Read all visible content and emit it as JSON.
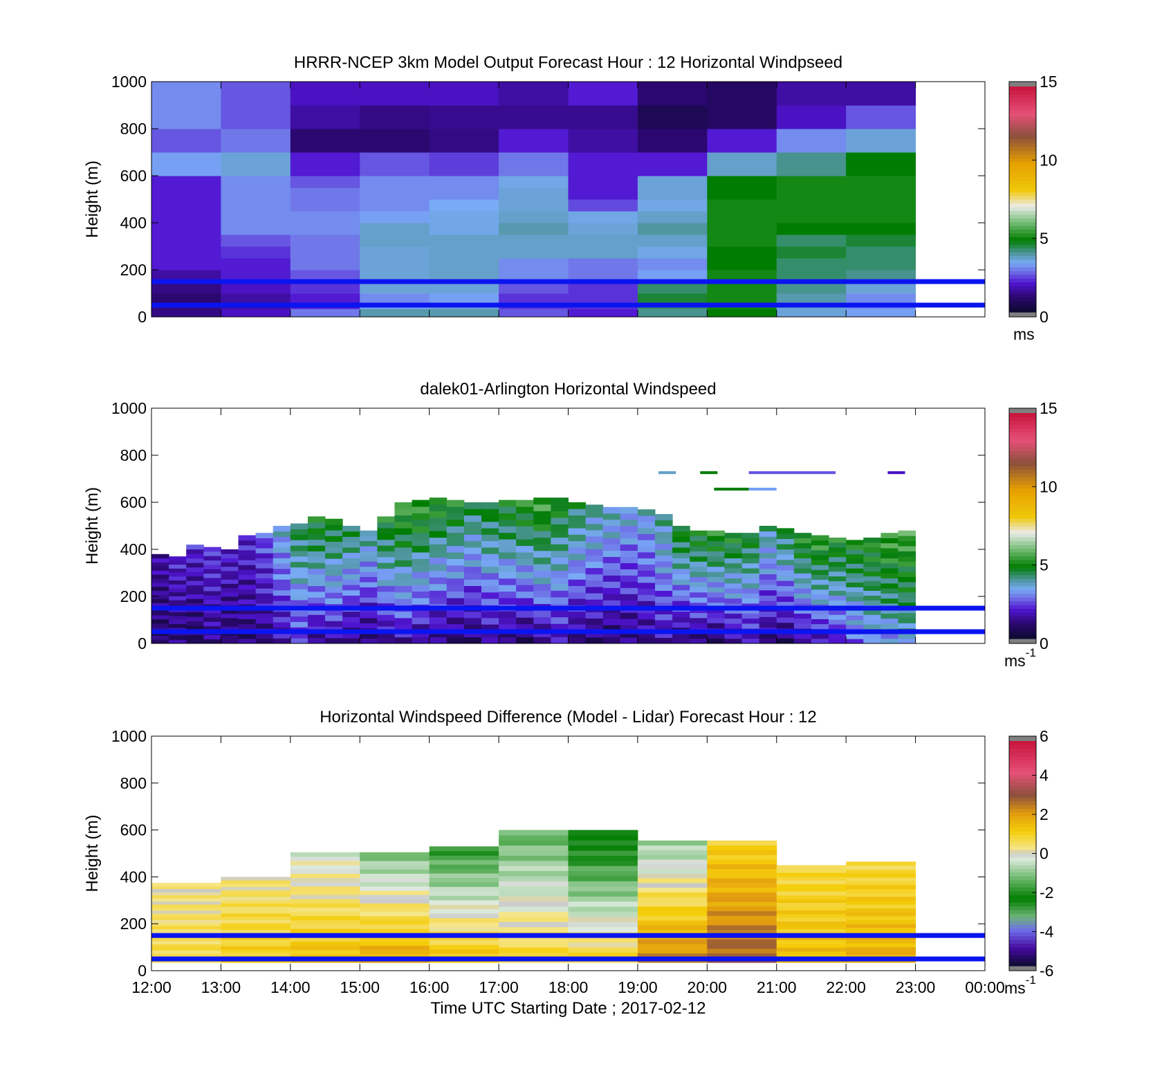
{
  "chart_data": [
    {
      "id": "model",
      "type": "heatmap",
      "title": "HRRR-NCEP 3km Model Output   Forecast Hour : 12 Horizontal Windpseed",
      "ylabel": "Height (m)",
      "xlim": [
        12,
        24
      ],
      "ylim": [
        0,
        1000
      ],
      "yticks": [
        "0",
        "200",
        "400",
        "600",
        "800",
        "1000"
      ],
      "colorbar": {
        "ticks": [
          "0",
          "5",
          "10",
          "15"
        ],
        "range": [
          0,
          15
        ],
        "unit": "ms",
        "unit_sup": "",
        "palette": "speed"
      },
      "reference_lines_m": [
        50,
        150
      ],
      "cell_hours": 1,
      "levels_m": [
        0,
        35,
        60,
        100,
        150,
        200,
        250,
        300,
        350,
        400,
        450,
        500,
        550,
        600,
        700,
        800,
        900,
        1000
      ],
      "columns": [
        {
          "start": 12,
          "values": [
            1.2,
            1.2,
            1.0,
            1.2,
            1.5,
            2.0,
            2.0,
            2.0,
            2.0,
            2.0,
            2.0,
            2.0,
            2.0,
            3.2,
            2.5,
            3.0,
            3.0
          ]
        },
        {
          "start": 13,
          "values": [
            1.8,
            1.5,
            1.5,
            1.8,
            2.0,
            2.0,
            2.2,
            2.5,
            3.0,
            3.0,
            3.0,
            3.0,
            3.0,
            3.5,
            2.8,
            2.5,
            2.5
          ]
        },
        {
          "start": 14,
          "values": [
            2.8,
            2.0,
            2.0,
            2.2,
            2.5,
            2.8,
            2.8,
            2.8,
            3.0,
            3.0,
            2.8,
            2.8,
            2.5,
            2.0,
            1.0,
            1.5,
            1.8
          ]
        },
        {
          "start": 15,
          "values": [
            3.8,
            3.2,
            3.0,
            3.5,
            3.5,
            3.5,
            3.5,
            3.6,
            3.6,
            3.2,
            3.0,
            3.0,
            3.0,
            2.5,
            1.0,
            1.2,
            1.8
          ]
        },
        {
          "start": 16,
          "values": [
            3.8,
            3.5,
            3.2,
            3.5,
            3.6,
            3.6,
            3.6,
            3.6,
            3.4,
            3.4,
            3.3,
            3.0,
            3.0,
            2.3,
            1.2,
            1.3,
            1.8
          ]
        },
        {
          "start": 17,
          "values": [
            2.5,
            2.2,
            2.2,
            2.5,
            3.0,
            3.0,
            3.6,
            3.6,
            3.8,
            3.6,
            3.5,
            3.5,
            3.4,
            2.8,
            2.0,
            1.3,
            1.5
          ]
        },
        {
          "start": 18,
          "values": [
            2.0,
            2.2,
            2.2,
            2.2,
            2.8,
            2.8,
            3.6,
            3.6,
            3.5,
            3.4,
            2.4,
            2.0,
            2.0,
            2.0,
            1.5,
            1.3,
            2.0
          ]
        },
        {
          "start": 19,
          "values": [
            4.0,
            4.2,
            4.5,
            4.2,
            3.2,
            3.0,
            3.4,
            3.6,
            3.9,
            3.6,
            3.4,
            3.5,
            3.5,
            2.0,
            1.0,
            0.6,
            1.0
          ]
        },
        {
          "start": 20,
          "values": [
            4.8,
            5.0,
            5.0,
            5.0,
            5.0,
            4.8,
            4.8,
            5.0,
            5.0,
            5.0,
            5.0,
            4.8,
            4.8,
            3.6,
            2.0,
            0.8,
            0.8
          ]
        },
        {
          "start": 21,
          "values": [
            3.5,
            3.5,
            3.8,
            4.0,
            4.2,
            4.2,
            4.5,
            4.2,
            4.8,
            5.0,
            5.0,
            5.0,
            5.0,
            4.0,
            3.0,
            1.8,
            1.5
          ]
        },
        {
          "start": 22,
          "values": [
            3.2,
            3.0,
            3.0,
            3.5,
            4.0,
            4.2,
            4.2,
            4.5,
            4.8,
            5.0,
            5.0,
            5.0,
            5.0,
            4.8,
            3.5,
            2.5,
            1.5
          ]
        }
      ]
    },
    {
      "id": "lidar",
      "type": "heatmap",
      "title": "dalek01-Arlington  Horizontal Windspeed",
      "ylabel": "Height (m)",
      "xlim": [
        12,
        24
      ],
      "ylim": [
        0,
        1000
      ],
      "yticks": [
        "0",
        "200",
        "400",
        "600",
        "800",
        "1000"
      ],
      "colorbar": {
        "ticks": [
          "0",
          "5",
          "10",
          "15"
        ],
        "range": [
          0,
          15
        ],
        "unit": "ms",
        "unit_sup": "-1",
        "palette": "speed"
      },
      "reference_lines_m": [
        50,
        150
      ],
      "cell_hours": 0.25,
      "column_tops_m": [
        380,
        370,
        420,
        410,
        400,
        460,
        470,
        500,
        510,
        540,
        530,
        500,
        480,
        540,
        600,
        610,
        620,
        610,
        600,
        600,
        610,
        610,
        620,
        620,
        600,
        590,
        580,
        580,
        570,
        550,
        500,
        480,
        480,
        470,
        470,
        500,
        490,
        470,
        460,
        450,
        440,
        450,
        470,
        480
      ],
      "surface_speed": [
        0.8,
        1.0,
        0.8,
        1.2,
        0.8,
        1.0,
        1.2,
        1.5,
        2.0,
        1.2,
        1.5,
        1.0,
        0.8,
        1.2,
        1.5,
        1.2,
        1.0,
        0.8,
        0.8,
        1.2,
        1.0,
        0.8,
        1.2,
        1.5,
        1.0,
        1.0,
        0.8,
        1.0,
        1.2,
        1.5,
        0.8,
        1.0,
        0.8,
        1.2,
        1.5,
        1.0,
        0.8,
        1.2,
        1.5,
        2.0,
        2.5,
        2.8,
        3.0,
        3.5
      ],
      "upper_speed": [
        1.5,
        2.0,
        2.0,
        2.2,
        2.0,
        2.0,
        2.5,
        3.5,
        4.5,
        5.0,
        4.8,
        4.5,
        4.0,
        5.0,
        5.5,
        5.5,
        5.2,
        5.0,
        4.5,
        4.8,
        5.0,
        5.2,
        5.5,
        5.0,
        4.5,
        4.0,
        3.8,
        3.5,
        3.5,
        4.0,
        5.0,
        5.0,
        5.2,
        5.0,
        4.8,
        4.0,
        4.5,
        5.2,
        5.5,
        5.0,
        5.0,
        5.2,
        5.5,
        5.5
      ],
      "elevated_segments": [
        {
          "start": 19.3,
          "end": 19.55,
          "height": 720,
          "value": 3.6
        },
        {
          "start": 19.9,
          "end": 20.15,
          "height": 720,
          "value": 4.8
        },
        {
          "start": 20.6,
          "end": 21.85,
          "height": 720,
          "value": 2.5
        },
        {
          "start": 22.6,
          "end": 22.85,
          "height": 720,
          "value": 1.8
        },
        {
          "start": 20.1,
          "end": 20.6,
          "height": 650,
          "value": 4.8
        },
        {
          "start": 20.6,
          "end": 21.0,
          "height": 650,
          "value": 3.2
        }
      ]
    },
    {
      "id": "difference",
      "type": "heatmap",
      "title": "Horizontal Windspeed Difference (Model - Lidar) Forecast Hour : 12",
      "xlabel": "Time UTC  Starting Date ; 2017-02-12",
      "ylabel": "Height (m)",
      "xlim": [
        12,
        24
      ],
      "ylim": [
        0,
        1000
      ],
      "xticks": [
        "12:00",
        "13:00",
        "14:00",
        "15:00",
        "16:00",
        "17:00",
        "18:00",
        "19:00",
        "20:00",
        "21:00",
        "22:00",
        "23:00",
        "00:00"
      ],
      "yticks": [
        "0",
        "200",
        "400",
        "600",
        "800",
        "1000"
      ],
      "colorbar": {
        "ticks": [
          "-6",
          "-4",
          "-2",
          "0",
          "2",
          "4",
          "6"
        ],
        "range": [
          -6,
          6
        ],
        "unit": "ms",
        "unit_sup": "-1",
        "palette": "diff"
      },
      "reference_lines_m": [
        50,
        150
      ],
      "cell_hours": 1,
      "columns": [
        {
          "start": 12,
          "top": 375,
          "bottom_value": 0.8,
          "top_value": 0.2
        },
        {
          "start": 13,
          "top": 400,
          "bottom_value": 1.2,
          "top_value": 0.3
        },
        {
          "start": 14,
          "top": 505,
          "bottom_value": 1.5,
          "top_value": -0.3
        },
        {
          "start": 15,
          "top": 505,
          "bottom_value": 2.0,
          "top_value": -1.2
        },
        {
          "start": 16,
          "top": 530,
          "bottom_value": 1.5,
          "top_value": -2.0
        },
        {
          "start": 17,
          "top": 600,
          "bottom_value": 1.0,
          "top_value": -1.5
        },
        {
          "start": 18,
          "top": 600,
          "bottom_value": 1.0,
          "top_value": -2.8
        },
        {
          "start": 19,
          "top": 555,
          "bottom_value": 2.5,
          "top_value": -1.0
        },
        {
          "start": 20,
          "top": 555,
          "bottom_value": 3.0,
          "top_value": 1.0
        },
        {
          "start": 21,
          "top": 450,
          "bottom_value": 1.5,
          "top_value": 0.8
        },
        {
          "start": 22,
          "top": 465,
          "bottom_value": 1.8,
          "top_value": 0.8
        }
      ]
    }
  ]
}
